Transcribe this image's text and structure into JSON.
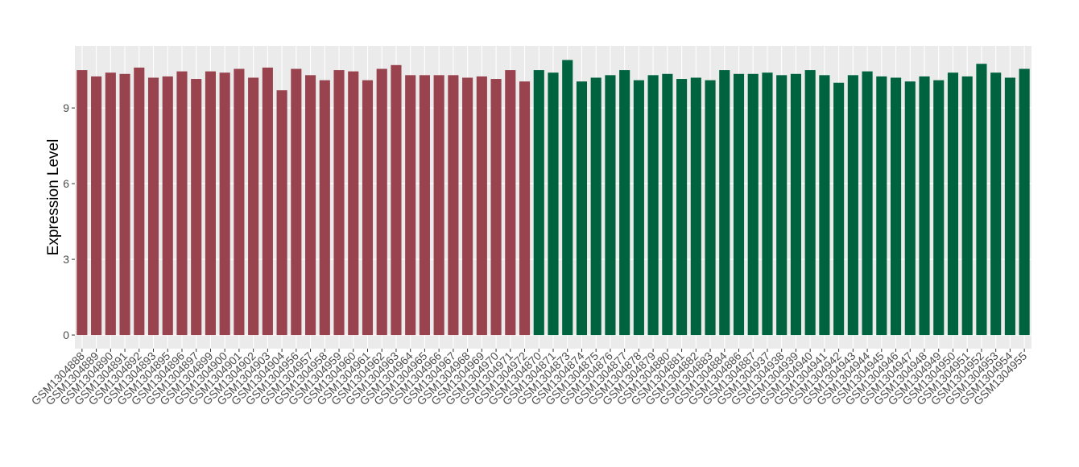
{
  "chart_data": {
    "type": "bar",
    "y_label": "Expression Level",
    "categories": [
      "GSM1304888",
      "GSM1304889",
      "GSM1304890",
      "GSM1304891",
      "GSM1304892",
      "GSM1304893",
      "GSM1304895",
      "GSM1304896",
      "GSM1304897",
      "GSM1304899",
      "GSM1304900",
      "GSM1304901",
      "GSM1304902",
      "GSM1304903",
      "GSM1304904",
      "GSM1304956",
      "GSM1304957",
      "GSM1304958",
      "GSM1304959",
      "GSM1304960",
      "GSM1304961",
      "GSM1304962",
      "GSM1304963",
      "GSM1304964",
      "GSM1304965",
      "GSM1304966",
      "GSM1304967",
      "GSM1304968",
      "GSM1304969",
      "GSM1304970",
      "GSM1304971",
      "GSM1304972",
      "GSM1304870",
      "GSM1304871",
      "GSM1304873",
      "GSM1304874",
      "GSM1304875",
      "GSM1304876",
      "GSM1304877",
      "GSM1304878",
      "GSM1304879",
      "GSM1304880",
      "GSM1304881",
      "GSM1304882",
      "GSM1304883",
      "GSM1304884",
      "GSM1304886",
      "GSM1304887",
      "GSM1304937",
      "GSM1304938",
      "GSM1304939",
      "GSM1304940",
      "GSM1304941",
      "GSM1304942",
      "GSM1304943",
      "GSM1304944",
      "GSM1304945",
      "GSM1304946",
      "GSM1304947",
      "GSM1304948",
      "GSM1304949",
      "GSM1304950",
      "GSM1304951",
      "GSM1304952",
      "GSM1304953",
      "GSM1304954",
      "GSM1304955"
    ],
    "series": [
      {
        "color": "#99434f",
        "values": [
          10.5,
          10.25,
          10.4,
          10.35,
          10.6,
          10.2,
          10.25,
          10.45,
          10.15,
          10.45,
          10.4,
          10.55,
          10.2,
          10.6,
          9.7,
          10.55,
          10.3,
          10.1,
          10.5,
          10.45,
          10.1,
          10.55,
          10.7,
          10.3,
          10.3,
          10.3,
          10.3,
          10.2,
          10.25,
          10.15,
          10.5,
          10.05,
          null,
          null,
          null,
          null,
          null,
          null,
          null,
          null,
          null,
          null,
          null,
          null,
          null,
          null,
          null,
          null,
          null,
          null,
          null,
          null,
          null,
          null,
          null,
          null,
          null,
          null,
          null,
          null,
          null,
          null,
          null,
          null,
          null,
          null,
          null
        ]
      },
      {
        "color": "#006340",
        "values": [
          null,
          null,
          null,
          null,
          null,
          null,
          null,
          null,
          null,
          null,
          null,
          null,
          null,
          null,
          null,
          null,
          null,
          null,
          null,
          null,
          null,
          null,
          null,
          null,
          null,
          null,
          null,
          null,
          null,
          null,
          null,
          null,
          10.5,
          10.4,
          10.9,
          10.05,
          10.2,
          10.3,
          10.5,
          10.1,
          10.3,
          10.35,
          10.15,
          10.2,
          10.1,
          10.5,
          10.35,
          10.35,
          10.4,
          10.3,
          10.35,
          10.5,
          10.3,
          10.0,
          10.3,
          10.45,
          10.25,
          10.2,
          10.05,
          10.25,
          10.1,
          10.4,
          10.25,
          10.75,
          10.4,
          10.2,
          10.55
        ]
      }
    ],
    "ylim": [
      -0.54,
      11.46
    ],
    "yticks": [
      0,
      3,
      6,
      9
    ],
    "grid": true
  }
}
